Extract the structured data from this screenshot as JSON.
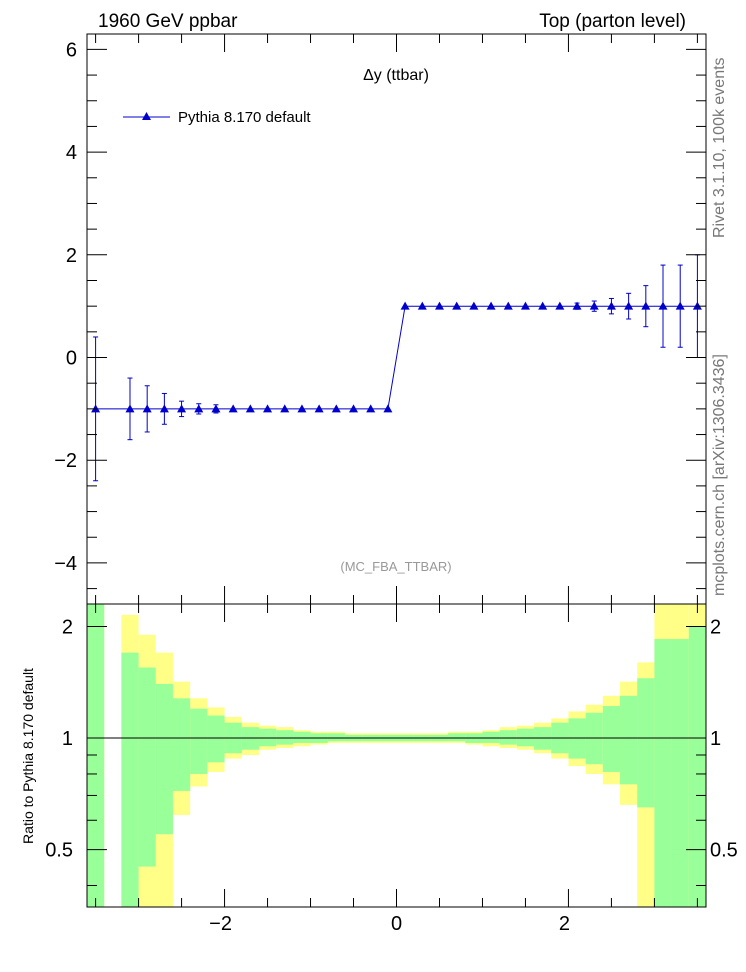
{
  "header": {
    "left": "1960 GeV ppbar",
    "right": "Top (parton level)"
  },
  "side_labels": {
    "rivet": "Rivet 3.1.10,  100k events",
    "mcplots": "mcplots.cern.ch [arXiv:1306.3436]"
  },
  "chart_data": [
    {
      "type": "line",
      "title": "Δy (ttbar)",
      "watermark": "(MC_FBA_TTBAR)",
      "xlim": [
        -3.6,
        3.6
      ],
      "ylim": [
        -4.8,
        6.3
      ],
      "x_ticks": [
        -2,
        0,
        2
      ],
      "y_ticks": [
        -4,
        -2,
        0,
        2,
        4,
        6
      ],
      "legend_position": "top-left",
      "color": "#0000cc",
      "series": [
        {
          "name": "Pythia 8.170 default",
          "x": [
            -3.5,
            -3.1,
            -2.9,
            -2.7,
            -2.5,
            -2.3,
            -2.1,
            -1.9,
            -1.7,
            -1.5,
            -1.3,
            -1.1,
            -0.9,
            -0.7,
            -0.5,
            -0.3,
            -0.1,
            0.1,
            0.3,
            0.5,
            0.7,
            0.9,
            1.1,
            1.3,
            1.5,
            1.7,
            1.9,
            2.1,
            2.3,
            2.5,
            2.7,
            2.9,
            3.1,
            3.3,
            3.5
          ],
          "y": [
            -1,
            -1,
            -1,
            -1,
            -1,
            -1,
            -1,
            -1,
            -1,
            -1,
            -1,
            -1,
            -1,
            -1,
            -1,
            -1,
            -1,
            1,
            1,
            1,
            1,
            1,
            1,
            1,
            1,
            1,
            1,
            1,
            1,
            1,
            1,
            1,
            1,
            1,
            1
          ],
          "err": [
            1.4,
            0.6,
            0.45,
            0.3,
            0.15,
            0.1,
            0.08,
            0,
            0,
            0,
            0,
            0,
            0,
            0,
            0,
            0,
            0,
            0,
            0,
            0,
            0,
            0,
            0,
            0,
            0,
            0,
            0,
            0.06,
            0.1,
            0.15,
            0.25,
            0.4,
            0.8,
            0.8,
            1.0
          ]
        }
      ]
    },
    {
      "type": "area",
      "ylabel": "Ratio to Pythia 8.170 default",
      "xlim": [
        -3.6,
        3.6
      ],
      "ylim": [
        0.35,
        2.3
      ],
      "x_ticks": [
        -2,
        0,
        2
      ],
      "y_ticks": [
        0.5,
        1,
        2
      ],
      "reference_line": 1,
      "bins": [
        {
          "lo": -3.6,
          "hi": -3.4,
          "y1": [
            0.35,
            2.3
          ],
          "y2": [
            0.35,
            2.3
          ]
        },
        {
          "lo": -3.2,
          "hi": -3.0,
          "y1": [
            0.35,
            1.7
          ],
          "y2": [
            0.35,
            2.15
          ]
        },
        {
          "lo": -3.0,
          "hi": -2.8,
          "y1": [
            0.45,
            1.55
          ],
          "y2": [
            0.35,
            1.9
          ]
        },
        {
          "lo": -2.8,
          "hi": -2.6,
          "y1": [
            0.55,
            1.4
          ],
          "y2": [
            0.35,
            1.7
          ]
        },
        {
          "lo": -2.6,
          "hi": -2.4,
          "y1": [
            0.72,
            1.28
          ],
          "y2": [
            0.62,
            1.42
          ]
        },
        {
          "lo": -2.4,
          "hi": -2.2,
          "y1": [
            0.8,
            1.2
          ],
          "y2": [
            0.74,
            1.28
          ]
        },
        {
          "lo": -2.2,
          "hi": -2.0,
          "y1": [
            0.86,
            1.15
          ],
          "y2": [
            0.81,
            1.21
          ]
        },
        {
          "lo": -2.0,
          "hi": -1.8,
          "y1": [
            0.91,
            1.1
          ],
          "y2": [
            0.88,
            1.14
          ]
        },
        {
          "lo": -1.8,
          "hi": -1.6,
          "y1": [
            0.93,
            1.07
          ],
          "y2": [
            0.9,
            1.1
          ]
        },
        {
          "lo": -1.6,
          "hi": -1.4,
          "y1": [
            0.95,
            1.06
          ],
          "y2": [
            0.93,
            1.08
          ]
        },
        {
          "lo": -1.4,
          "hi": -1.2,
          "y1": [
            0.96,
            1.05
          ],
          "y2": [
            0.94,
            1.07
          ]
        },
        {
          "lo": -1.2,
          "hi": -1.0,
          "y1": [
            0.97,
            1.04
          ],
          "y2": [
            0.95,
            1.05
          ]
        },
        {
          "lo": -1.0,
          "hi": -0.8,
          "y1": [
            0.97,
            1.03
          ],
          "y2": [
            0.96,
            1.04
          ]
        },
        {
          "lo": -0.8,
          "hi": -0.6,
          "y1": [
            0.98,
            1.03
          ],
          "y2": [
            0.97,
            1.04
          ]
        },
        {
          "lo": -0.6,
          "hi": -0.4,
          "y1": [
            0.98,
            1.02
          ],
          "y2": [
            0.97,
            1.03
          ]
        },
        {
          "lo": -0.4,
          "hi": -0.2,
          "y1": [
            0.98,
            1.02
          ],
          "y2": [
            0.97,
            1.03
          ]
        },
        {
          "lo": -0.2,
          "hi": 0.0,
          "y1": [
            0.98,
            1.02
          ],
          "y2": [
            0.97,
            1.03
          ]
        },
        {
          "lo": 0.0,
          "hi": 0.2,
          "y1": [
            0.98,
            1.02
          ],
          "y2": [
            0.97,
            1.03
          ]
        },
        {
          "lo": 0.2,
          "hi": 0.4,
          "y1": [
            0.98,
            1.02
          ],
          "y2": [
            0.97,
            1.03
          ]
        },
        {
          "lo": 0.4,
          "hi": 0.6,
          "y1": [
            0.98,
            1.02
          ],
          "y2": [
            0.97,
            1.03
          ]
        },
        {
          "lo": 0.6,
          "hi": 0.8,
          "y1": [
            0.98,
            1.03
          ],
          "y2": [
            0.97,
            1.04
          ]
        },
        {
          "lo": 0.8,
          "hi": 1.0,
          "y1": [
            0.97,
            1.03
          ],
          "y2": [
            0.96,
            1.04
          ]
        },
        {
          "lo": 1.0,
          "hi": 1.2,
          "y1": [
            0.97,
            1.04
          ],
          "y2": [
            0.95,
            1.05
          ]
        },
        {
          "lo": 1.2,
          "hi": 1.4,
          "y1": [
            0.96,
            1.05
          ],
          "y2": [
            0.94,
            1.07
          ]
        },
        {
          "lo": 1.4,
          "hi": 1.6,
          "y1": [
            0.95,
            1.06
          ],
          "y2": [
            0.93,
            1.08
          ]
        },
        {
          "lo": 1.6,
          "hi": 1.8,
          "y1": [
            0.93,
            1.07
          ],
          "y2": [
            0.91,
            1.1
          ]
        },
        {
          "lo": 1.8,
          "hi": 2.0,
          "y1": [
            0.91,
            1.1
          ],
          "y2": [
            0.88,
            1.13
          ]
        },
        {
          "lo": 2.0,
          "hi": 2.2,
          "y1": [
            0.88,
            1.13
          ],
          "y2": [
            0.84,
            1.18
          ]
        },
        {
          "lo": 2.2,
          "hi": 2.4,
          "y1": [
            0.85,
            1.17
          ],
          "y2": [
            0.8,
            1.23
          ]
        },
        {
          "lo": 2.4,
          "hi": 2.6,
          "y1": [
            0.81,
            1.22
          ],
          "y2": [
            0.75,
            1.3
          ]
        },
        {
          "lo": 2.6,
          "hi": 2.8,
          "y1": [
            0.75,
            1.3
          ],
          "y2": [
            0.66,
            1.42
          ]
        },
        {
          "lo": 2.8,
          "hi": 3.0,
          "y1": [
            0.65,
            1.45
          ],
          "y2": [
            0.35,
            1.6
          ]
        },
        {
          "lo": 3.0,
          "hi": 3.2,
          "y1": [
            0.35,
            1.85
          ],
          "y2": [
            0.35,
            2.3
          ]
        },
        {
          "lo": 3.2,
          "hi": 3.4,
          "y1": [
            0.35,
            1.85
          ],
          "y2": [
            0.35,
            2.3
          ]
        },
        {
          "lo": 3.4,
          "hi": 3.6,
          "y1": [
            0.35,
            2.0
          ],
          "y2": [
            0.35,
            2.3
          ]
        }
      ],
      "colors": {
        "inner": "#99ff99",
        "outer": "#ffff88"
      }
    }
  ]
}
